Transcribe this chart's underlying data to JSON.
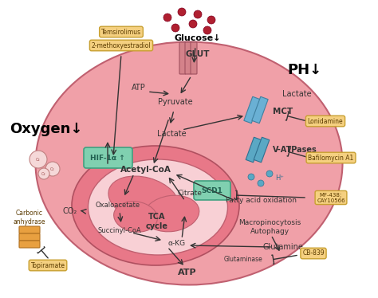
{
  "bg_color": "#ffffff",
  "cell_color": "#f0a0a8",
  "mito_outer_color": "#e87888",
  "hif_color": "#80d0b0",
  "scd1_color": "#80d0b0",
  "drug_color": "#f5d080",
  "drug_border": "#c8a030",
  "label_oxygen": "Oxygen↓",
  "label_ph": "PH↓",
  "label_glucose": "Glucose↓",
  "label_glut": "GLUT",
  "label_lactate_out": "Lactate",
  "label_mct": "MCT",
  "label_vatpases": "V-ATPases",
  "label_hif": "HIF-1α",
  "label_pyruvate": "Pyruvate",
  "label_lactate_in": "Lactate",
  "label_acetylcoa": "Acetyl-CoA",
  "label_oxaloacetate": "Oxaloacetate",
  "label_citrate": "Citrate",
  "label_tca": "TCA\ncycle",
  "label_alphakg": "α-KG",
  "label_succinylcoa": "Succinyl-CoA",
  "label_atp1": "ATP",
  "label_atp2": "ATP",
  "label_co2": "CO₂",
  "label_hplus": "H⁺",
  "label_fatty": "Fatty acid oxidation",
  "label_macro": "Macropinocytosis\nAutophagy",
  "label_glutamine": "Glutamine",
  "label_glutaminase": "Glutaminase",
  "label_scd1": "SCD1",
  "label_carbonic": "Carbonic\nanhydrase",
  "label_temsirolimus": "Temsirolimus",
  "label_2methoxy": "2-methoxyestradiol",
  "label_lonidamine": "Lonidamine",
  "label_bafilomycin": "Bafilomycin A1",
  "label_mf438": "MF-438;\nCAY10566",
  "label_topiramate": "Topiramate",
  "label_cb839": "CB-839"
}
